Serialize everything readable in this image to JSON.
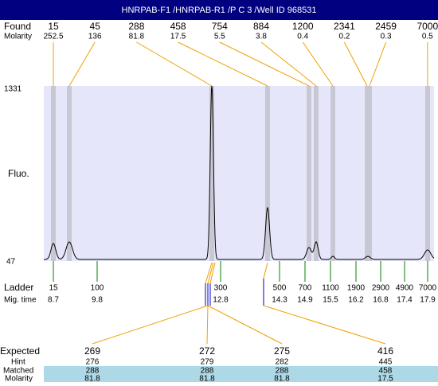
{
  "header": {
    "title": "HNRPAB-F1 /HNRPAB-R1 /P C 3 /Well ID 968531"
  },
  "found": {
    "label": "Found",
    "sizes": [
      15,
      45,
      288,
      458,
      754,
      884,
      1200,
      2341,
      2459,
      7000
    ],
    "molarity_label": "Molarity",
    "molarity": [
      252.5,
      136,
      81.8,
      17.5,
      5.5,
      3.8,
      0.4,
      0.2,
      0.3,
      0.5
    ]
  },
  "plot": {
    "top_label": 1331,
    "bottom_label": 47,
    "axis_label": "Fluo."
  },
  "ladder": {
    "label": "Ladder",
    "sizes": [
      15,
      100,
      300,
      500,
      700,
      1100,
      1900,
      2900,
      4900,
      7000
    ],
    "mig_label": "Mig. time",
    "mig_times": [
      8.7,
      9.8,
      12.8,
      14.3,
      14.9,
      15.5,
      16.2,
      16.8,
      17.4,
      17.9
    ]
  },
  "expected": {
    "label": "Expected",
    "values": [
      269,
      272,
      275,
      416
    ],
    "hint_label": "Hint",
    "hint": [
      276,
      279,
      282,
      445
    ],
    "matched_label": "Matched",
    "matched": [
      288,
      288,
      288,
      458
    ],
    "molarity_label": "Molarity",
    "molarity": [
      81.8,
      81.8,
      81.8,
      17.5
    ]
  }
}
